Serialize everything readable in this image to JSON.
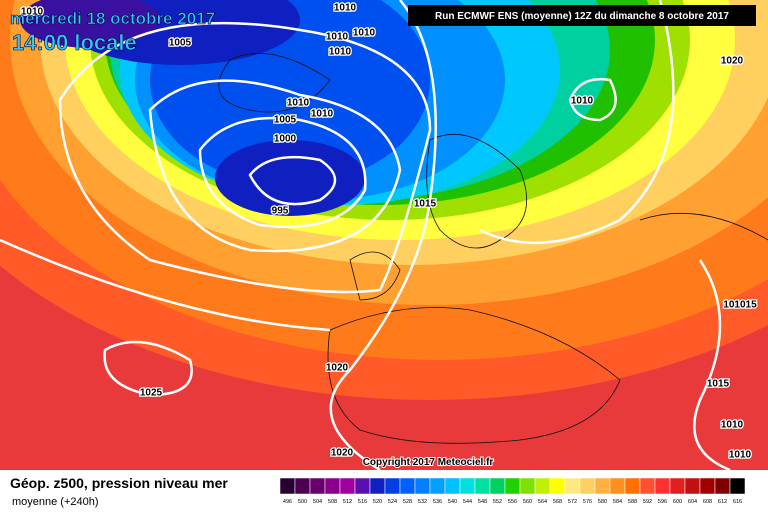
{
  "header": {
    "date": "mercredi 18 octobre 2017",
    "time": "14:00 locale",
    "run": "Run ECMWF ENS (moyenne) 12Z du dimanche 8 octobre 2017"
  },
  "isobar_labels": [
    "1010",
    "1005",
    "1010",
    "1010",
    "1010",
    "1010",
    "1010",
    "1010",
    "1005",
    "1000",
    "995",
    "1015",
    "1010",
    "1020",
    "101015",
    "1020",
    "1025",
    "1015",
    "1010",
    "1010",
    "1020"
  ],
  "footer": {
    "title": "Géop. z500, pression niveau mer",
    "subtitle": "moyenne  (+240h)",
    "copyright": "Copyright 2017 Meteociel.fr"
  },
  "scale": {
    "values": [
      496,
      500,
      504,
      508,
      512,
      516,
      520,
      524,
      528,
      532,
      536,
      540,
      544,
      548,
      552,
      556,
      560,
      564,
      568,
      572,
      576,
      580,
      584,
      588,
      592,
      596,
      600,
      604,
      608,
      612,
      616
    ],
    "colors": [
      "#2a0033",
      "#4b0050",
      "#6a006e",
      "#8a008a",
      "#a000a0",
      "#5a10b0",
      "#1020c0",
      "#0040e0",
      "#0060ff",
      "#0080ff",
      "#00a0ff",
      "#00c0ff",
      "#00e0e0",
      "#00e0a0",
      "#00d060",
      "#20d000",
      "#80e000",
      "#c0f000",
      "#ffff00",
      "#ffe880",
      "#ffd060",
      "#ffb040",
      "#ff9020",
      "#ff7000",
      "#ff5030",
      "#ff3030",
      "#e02020",
      "#c01010",
      "#a00000",
      "#800000",
      "#000000"
    ]
  }
}
